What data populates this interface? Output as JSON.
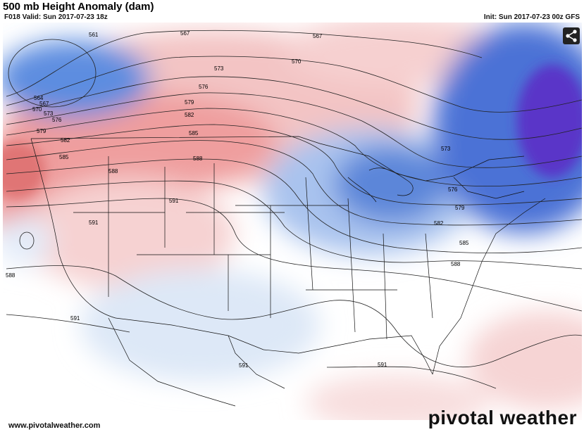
{
  "header": {
    "title": "500 mb Height Anomaly (dam)",
    "valid": "F018 Valid: Sun 2017-07-23 18z",
    "init": "Init: Sun 2017-07-23 00z GFS"
  },
  "contour_labels": [
    "561",
    "567",
    "567",
    "564",
    "567",
    "570",
    "573",
    "576",
    "579",
    "582",
    "585",
    "588",
    "591",
    "573",
    "576",
    "579",
    "582",
    "585",
    "588",
    "570",
    "573",
    "576",
    "579",
    "582",
    "585",
    "588",
    "591",
    "591",
    "591",
    "591",
    "588"
  ],
  "colors": {
    "positive_anomaly": "#e07f7f",
    "negative_anomaly": "#3f6fd0",
    "strong_negative": "#5a2fc0",
    "contour": "#222222"
  },
  "icons": {
    "share": "share-icon"
  },
  "footer": {
    "url": "www.pivotalweather.com",
    "logo": "pivotal weather"
  }
}
